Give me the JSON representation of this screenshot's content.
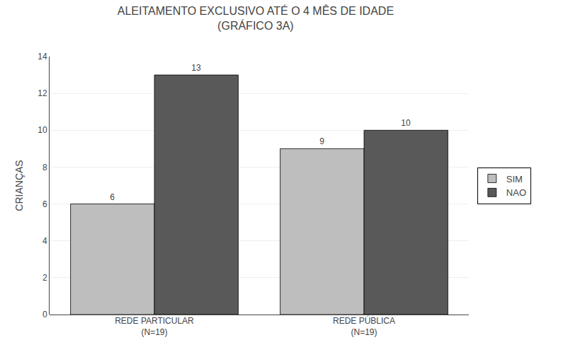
{
  "chart_data": {
    "type": "bar",
    "title": "ALEITAMENTO EXCLUSIVO ATÉ O 4 MÊS DE IDADE",
    "subtitle": "(GRÁFICO 3A)",
    "categories": [
      "REDE PARTICULAR\n(N=19)",
      "REDE PÚBLICA\n(N=19)"
    ],
    "series": [
      {
        "name": "SIM",
        "color": "#BEBEBE",
        "values": [
          6,
          9
        ]
      },
      {
        "name": "NAO",
        "color": "#595959",
        "values": [
          13,
          10
        ]
      }
    ],
    "ylabel": "CRIANÇAS",
    "ylim": [
      0,
      14
    ],
    "yticks": [
      0,
      2,
      4,
      6,
      8,
      10,
      12,
      14
    ],
    "grid": true,
    "data_labels": true,
    "legend": "right"
  }
}
